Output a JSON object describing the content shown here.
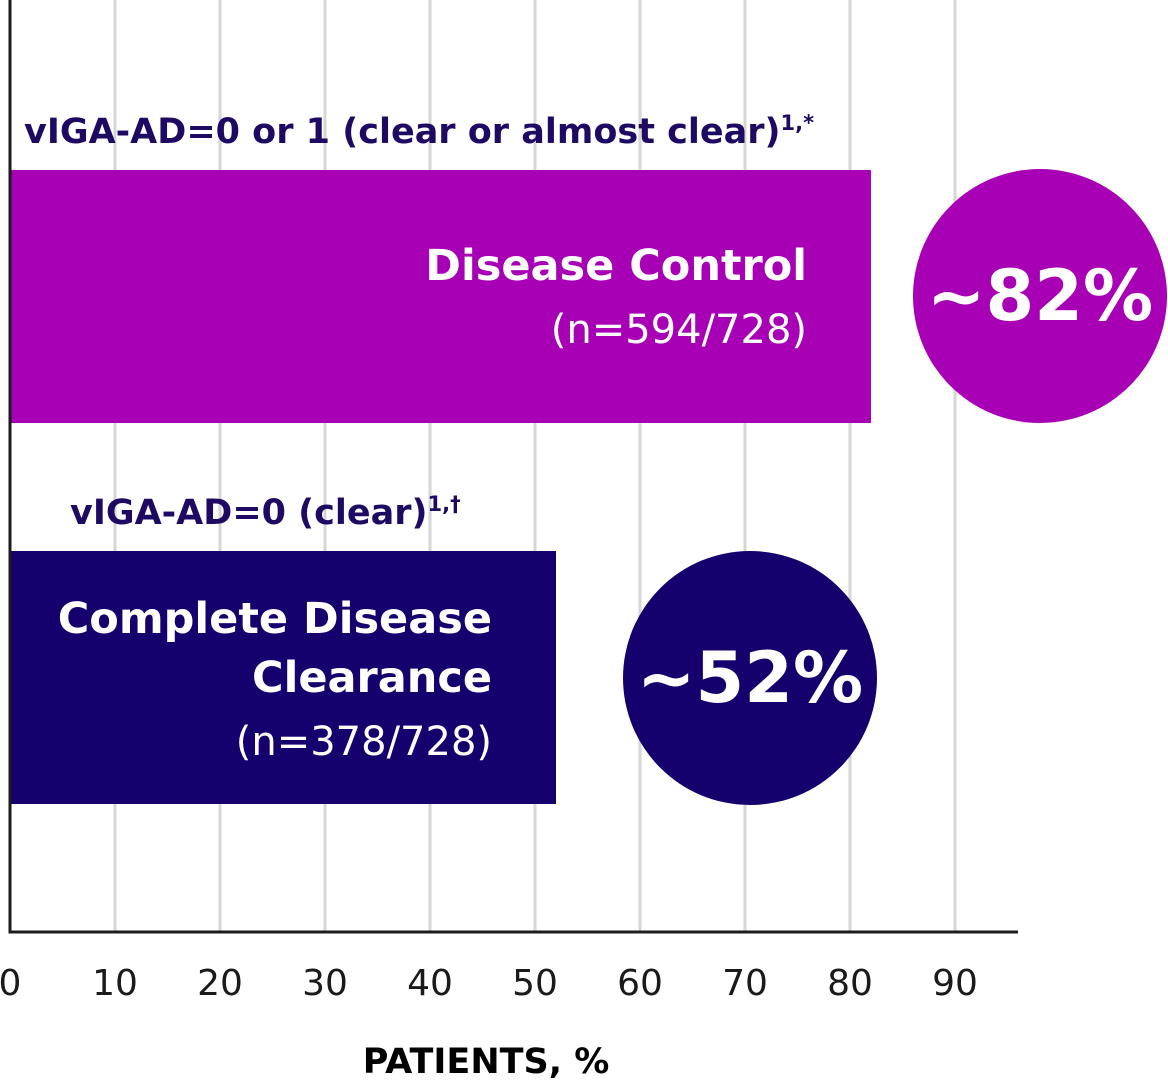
{
  "colors": {
    "magenta": "#a800b5",
    "navy": "#16006d",
    "grid": "#d6d6d6",
    "axis": "#1c1c1c",
    "text_dark": "#1f0a63"
  },
  "chart_data": {
    "type": "bar",
    "orientation": "horizontal",
    "xlabel": "PATIENTS, %",
    "xlim": [
      0,
      96
    ],
    "xticks": [
      0,
      10,
      20,
      30,
      40,
      50,
      60,
      70,
      80,
      90
    ],
    "grid": true,
    "bars": [
      {
        "heading": "vIGA-AD=0 or 1 (clear or almost clear)",
        "heading_sup": "1,*",
        "label_lines": [
          "Disease Control"
        ],
        "n_label": "(n=594/728)",
        "value": 82,
        "value_label": "~82%",
        "color": "#a800b5"
      },
      {
        "heading": "vIGA-AD=0 (clear)",
        "heading_sup": "1,†",
        "label_lines": [
          "Complete Disease",
          "Clearance"
        ],
        "n_label": "(n=378/728)",
        "value": 52,
        "value_label": "~52%",
        "color": "#16006d"
      }
    ]
  }
}
